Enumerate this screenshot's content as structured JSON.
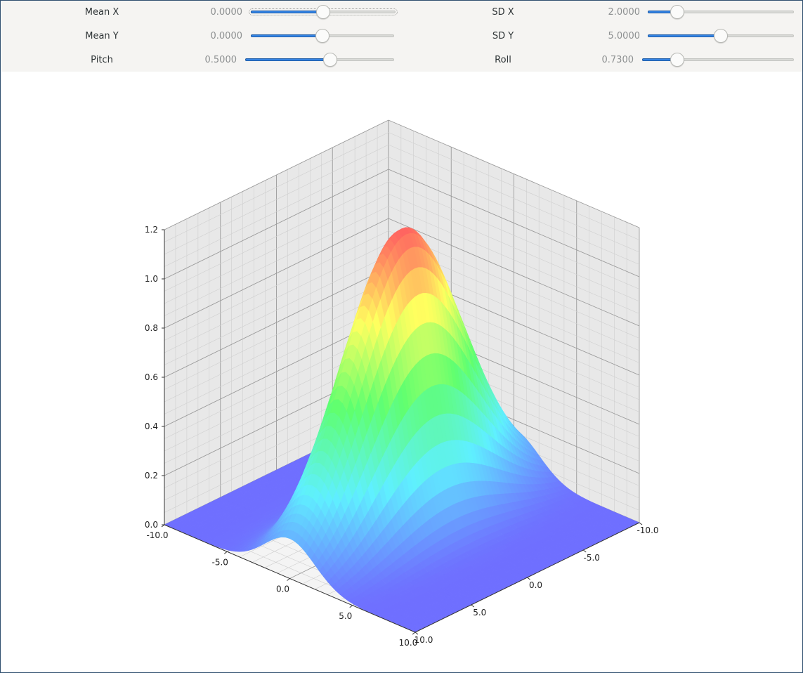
{
  "controls": [
    {
      "label": "Mean X",
      "value": "0.0000",
      "fraction": 0.5,
      "focused": true
    },
    {
      "label": "Mean Y",
      "value": "0.0000",
      "fraction": 0.5,
      "focused": false
    },
    {
      "label": "Pitch",
      "value": "0.5000",
      "fraction": 0.57,
      "focused": false
    },
    {
      "label": "SD X",
      "value": "2.0000",
      "fraction": 0.2,
      "focused": false
    },
    {
      "label": "SD Y",
      "value": "5.0000",
      "fraction": 0.5,
      "focused": false
    },
    {
      "label": "Roll",
      "value": "0.7300",
      "fraction": 0.23,
      "focused": false
    }
  ],
  "chart_data": {
    "type": "surface",
    "function": "bivariate gaussian",
    "mean_x": 0.0,
    "mean_y": 0.0,
    "sd_x": 2.0,
    "sd_y": 5.0,
    "peak_z": 1.2,
    "x_ticks": [
      "-10.0",
      "-5.0",
      "0.0",
      "5.0",
      "10.0"
    ],
    "y_ticks": [
      "-10.0",
      "-5.0",
      "0.0",
      "5.0",
      "10.0"
    ],
    "z_ticks": [
      "0.0",
      "0.2",
      "0.4",
      "0.6",
      "0.8",
      "1.0",
      "1.2"
    ],
    "xlim": [
      -10,
      10
    ],
    "ylim": [
      -10,
      10
    ],
    "zlim": [
      0,
      1.2
    ],
    "grid": true,
    "colormap": [
      "#6f6fff",
      "#5ff0ff",
      "#5fff6f",
      "#ffff5f",
      "#ff6060"
    ]
  }
}
